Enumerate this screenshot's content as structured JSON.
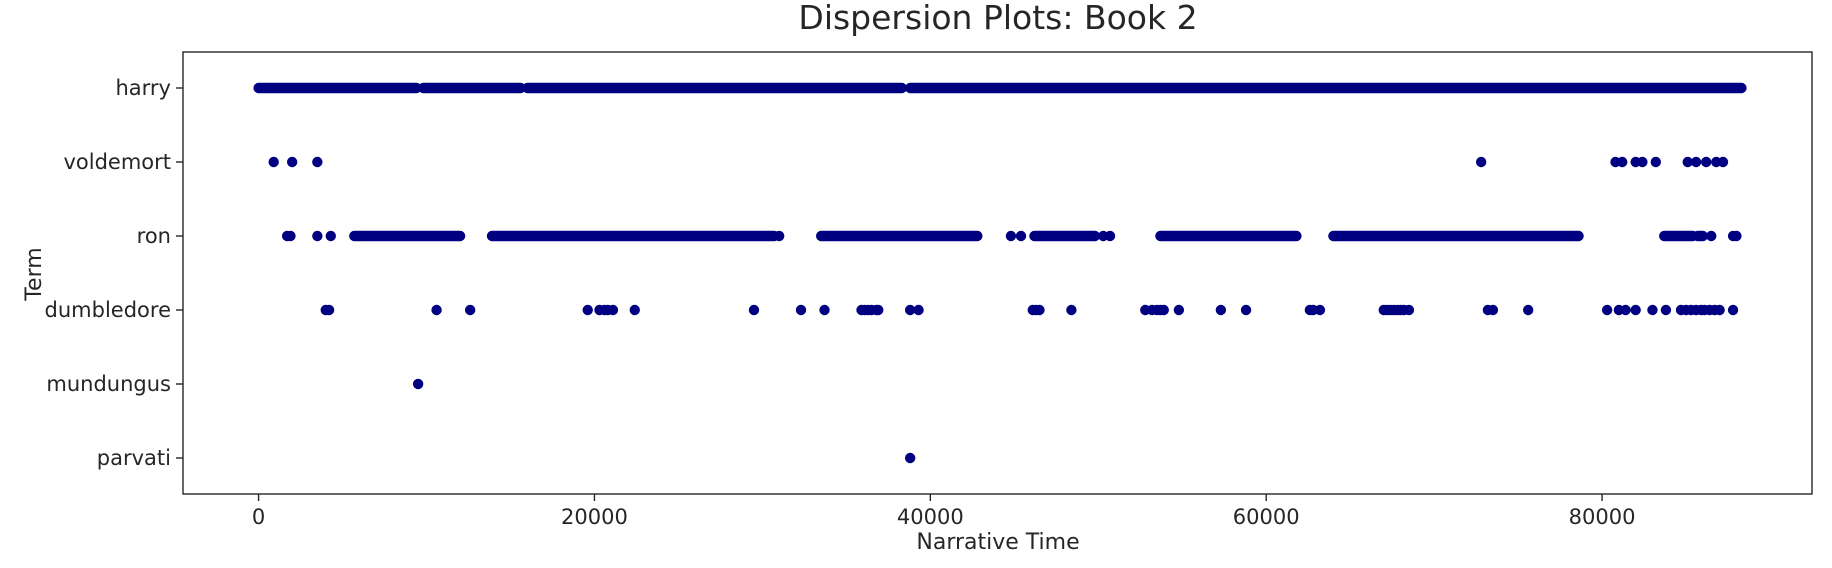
{
  "chart_data": {
    "type": "scatter",
    "title": "Dispersion Plots: Book 2",
    "xlabel": "Narrative Time",
    "ylabel": "Term",
    "xlim": [
      -4500,
      92500
    ],
    "x_ticks": [
      0,
      20000,
      40000,
      60000,
      80000
    ],
    "grid": false,
    "marker_color": "#000080",
    "categories": [
      "harry",
      "voldemort",
      "ron",
      "dumbledore",
      "mundungus",
      "parvati"
    ],
    "series": [
      {
        "term": "harry",
        "segments": [
          [
            0,
            9400
          ],
          [
            9800,
            15600
          ],
          [
            16000,
            38300
          ],
          [
            38800,
            88300
          ]
        ]
      },
      {
        "term": "voldemort",
        "values": [
          900,
          2000,
          3500,
          72800,
          80800,
          81200,
          82000,
          82400,
          83200,
          85100,
          85600,
          86200,
          86800,
          87200
        ]
      },
      {
        "term": "ron",
        "values": [
          1700,
          1900,
          3500,
          4300,
          31000,
          44800,
          45400,
          50300,
          50700,
          86500,
          87800,
          88000
        ],
        "segments": [
          [
            5700,
            12000
          ],
          [
            13900,
            30700
          ],
          [
            33500,
            42800
          ],
          [
            46200,
            49800
          ],
          [
            53700,
            61800
          ],
          [
            64000,
            78600
          ],
          [
            83700,
            85400
          ],
          [
            85700,
            86000
          ]
        ]
      },
      {
        "term": "dumbledore",
        "values": [
          4000,
          4200,
          10600,
          12600,
          19600,
          20300,
          20600,
          20800,
          21100,
          22400,
          29500,
          32300,
          33700,
          35900,
          36100,
          36300,
          36500,
          36800,
          36900,
          38800,
          39300,
          46100,
          46300,
          46500,
          48400,
          52800,
          53200,
          53500,
          53700,
          53900,
          54800,
          57300,
          58800,
          62600,
          62800,
          63200,
          67000,
          67200,
          67400,
          67600,
          67800,
          68000,
          68200,
          68500,
          73200,
          73500,
          75600,
          80300,
          81000,
          81400,
          82000,
          83000,
          83800,
          84700,
          85000,
          85300,
          85600,
          85900,
          86100,
          86400,
          86700,
          87000,
          87800
        ]
      },
      {
        "term": "mundungus",
        "values": [
          9500
        ]
      },
      {
        "term": "parvati",
        "values": [
          38800
        ]
      }
    ]
  }
}
